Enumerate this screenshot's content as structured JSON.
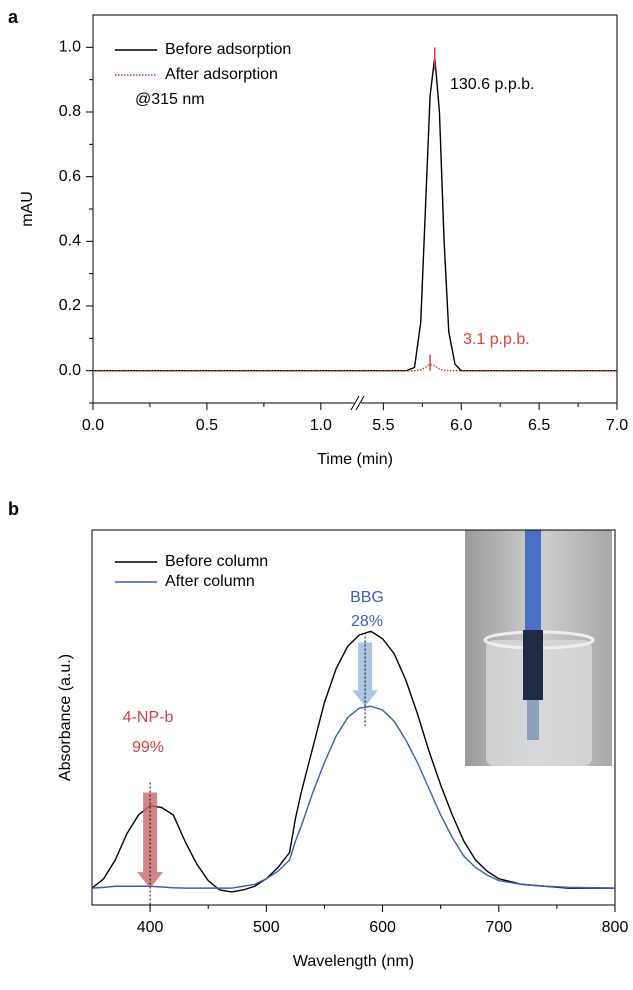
{
  "chart_data": [
    {
      "type": "line",
      "panel": "a",
      "xlabel": "Time (min)",
      "ylabel": "mAU",
      "xlim": [
        0,
        7.0
      ],
      "xbreak": [
        1.15,
        5.35
      ],
      "xticks": [
        {
          "value": 0,
          "label": "0.0"
        },
        0.5,
        {
          "value": 1,
          "label": "1.0"
        },
        5.5,
        {
          "value": 6,
          "label": "6.0"
        },
        6.5,
        {
          "value": 7,
          "label": "7.0"
        }
      ],
      "xminorticks": [
        0.25,
        0.75,
        5.75,
        6.25,
        6.75
      ],
      "ylim": [
        -0.1,
        1.1
      ],
      "yticks": [
        {
          "value": 0,
          "label": "0.0"
        },
        0.2,
        0.4,
        0.6,
        0.8,
        {
          "value": 1,
          "label": "1.0"
        }
      ],
      "yminorticks": [
        -0.1,
        0.1,
        0.3,
        0.5,
        0.7,
        0.9
      ],
      "x": [
        0,
        1.15,
        5.35,
        5.65,
        5.7,
        5.74,
        5.77,
        5.8,
        5.83,
        5.86,
        5.89,
        5.92,
        5.96,
        6.0,
        7.0
      ],
      "series": [
        {
          "name": "Before adsorption",
          "color": "#000000",
          "dash": "none",
          "values": [
            0,
            0,
            0,
            0,
            0.01,
            0.15,
            0.5,
            0.85,
            0.97,
            0.8,
            0.4,
            0.12,
            0.02,
            0,
            0
          ]
        },
        {
          "name": "After adsorption",
          "color": "#c0392b",
          "dash": "1.5 1.5",
          "values": [
            0,
            0,
            0,
            0,
            0,
            0.003,
            0.01,
            0.02,
            0.015,
            0.005,
            0.001,
            0,
            0,
            0,
            0
          ]
        }
      ],
      "markers": [
        {
          "x": 5.83,
          "ymin": 0.93,
          "ymax": 1.0,
          "color": "#d9433b"
        },
        {
          "x": 5.8,
          "ymin": 0.0,
          "ymax": 0.05,
          "color": "#d9433b"
        }
      ],
      "annotations": [
        {
          "text": "@315 nm",
          "color": "#000000"
        },
        {
          "text": "130.6 p.p.b.",
          "color": "#000000"
        },
        {
          "text": "3.1 p.p.b.",
          "color": "#d9433b"
        }
      ]
    },
    {
      "type": "line",
      "panel": "b",
      "xlabel": "Wavelength (nm)",
      "ylabel": "Absorbance (a.u.)",
      "xlim": [
        350,
        800
      ],
      "xticks": [
        400,
        500,
        600,
        700,
        800
      ],
      "xminorticks": [
        450,
        550,
        650,
        750
      ],
      "ylim": [
        0,
        1
      ],
      "x": [
        350,
        360,
        370,
        380,
        390,
        400,
        410,
        420,
        430,
        440,
        450,
        460,
        470,
        480,
        490,
        500,
        510,
        520,
        525,
        530,
        540,
        550,
        560,
        570,
        580,
        590,
        600,
        610,
        620,
        630,
        640,
        650,
        660,
        670,
        680,
        690,
        700,
        720,
        740,
        760,
        800
      ],
      "series": [
        {
          "name": "Before column",
          "color": "#000000",
          "dash": "none",
          "values": [
            0.045,
            0.07,
            0.12,
            0.19,
            0.24,
            0.265,
            0.26,
            0.24,
            0.17,
            0.11,
            0.065,
            0.04,
            0.035,
            0.04,
            0.05,
            0.07,
            0.1,
            0.14,
            0.23,
            0.3,
            0.42,
            0.54,
            0.63,
            0.69,
            0.72,
            0.73,
            0.71,
            0.67,
            0.6,
            0.51,
            0.41,
            0.32,
            0.24,
            0.17,
            0.12,
            0.09,
            0.07,
            0.055,
            0.05,
            0.045,
            0.045
          ]
        },
        {
          "name": "After column",
          "color": "#3b5fa8",
          "dash": "none",
          "values": [
            0.045,
            0.047,
            0.05,
            0.05,
            0.05,
            0.05,
            0.048,
            0.046,
            0.045,
            0.045,
            0.045,
            0.045,
            0.045,
            0.05,
            0.055,
            0.07,
            0.09,
            0.12,
            0.17,
            0.21,
            0.3,
            0.38,
            0.45,
            0.5,
            0.525,
            0.53,
            0.52,
            0.49,
            0.44,
            0.38,
            0.31,
            0.24,
            0.18,
            0.13,
            0.1,
            0.08,
            0.065,
            0.055,
            0.05,
            0.047,
            0.045
          ]
        }
      ],
      "arrows": [
        {
          "x": 400,
          "from": 0.3,
          "to": 0.045,
          "color": "#c9666b"
        },
        {
          "x": 585,
          "from": 0.7,
          "to": 0.53,
          "color": "#97b7dc"
        }
      ],
      "annotations": [
        {
          "text": "4-NP-b",
          "color": "#d04040"
        },
        {
          "text": "99%",
          "color": "#d04040"
        },
        {
          "text": "BBG",
          "color": "#3b5fa8"
        },
        {
          "text": "28%",
          "color": "#3b5fa8"
        }
      ]
    }
  ]
}
